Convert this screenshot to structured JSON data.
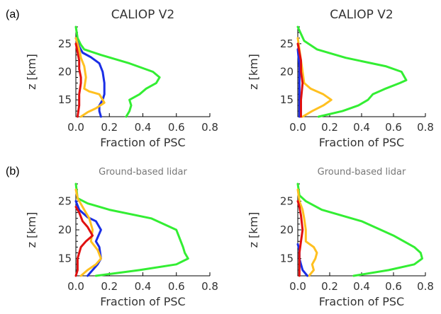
{
  "row_labels": [
    "(a)",
    "(b)"
  ],
  "colors": {
    "green": "#33ee33",
    "blue": "#1a2ee6",
    "orange": "#ffc020",
    "red": "#e01010"
  },
  "chart_data": [
    {
      "type": "line",
      "row_label": "(a)",
      "title": "CALIOP V2",
      "xlabel": "Fraction of PSC",
      "ylabel": "z [km]",
      "xlim": [
        0,
        0.8
      ],
      "ylim": [
        12,
        28
      ],
      "xticks": [
        "0.0",
        "0.2",
        "0.4",
        "0.6",
        "0.8"
      ],
      "yticks": [
        "15",
        "20",
        "25"
      ],
      "series": [
        {
          "color": "green",
          "x": [
            0.3,
            0.32,
            0.33,
            0.32,
            0.38,
            0.42,
            0.48,
            0.5,
            0.46,
            0.32,
            0.15,
            0.05,
            0.03,
            0.01,
            0.0
          ],
          "y": [
            12,
            13,
            14,
            15,
            16,
            17,
            18,
            19,
            20,
            21.5,
            23,
            24,
            24.8,
            26,
            28
          ]
        },
        {
          "color": "blue",
          "x": [
            0.15,
            0.14,
            0.14,
            0.16,
            0.17,
            0.17,
            0.16,
            0.14,
            0.09,
            0.04,
            0.02,
            0.0
          ],
          "y": [
            12,
            13,
            14,
            15,
            16,
            18,
            20,
            21.5,
            22.6,
            23.4,
            24.5,
            26
          ]
        },
        {
          "color": "orange",
          "x": [
            0.03,
            0.07,
            0.12,
            0.17,
            0.14,
            0.08,
            0.05,
            0.06,
            0.05,
            0.03,
            0.02,
            0.01,
            0.0
          ],
          "y": [
            12,
            12.8,
            13.5,
            14.5,
            16,
            16.5,
            17,
            19,
            21,
            22.5,
            24,
            25,
            26
          ]
        },
        {
          "color": "red",
          "x": [
            0.01,
            0.02,
            0.02,
            0.03,
            0.03,
            0.02,
            0.02,
            0.01,
            0.0
          ],
          "y": [
            12,
            14,
            16,
            18,
            19,
            20.5,
            22,
            23.5,
            25
          ]
        }
      ]
    },
    {
      "type": "line",
      "row_label": "(a)",
      "title": "CALIOP V2",
      "xlabel": "Fraction of PSC",
      "ylabel": "z [km]",
      "xlim": [
        0,
        0.8
      ],
      "ylim": [
        12,
        28
      ],
      "xticks": [
        "0.0",
        "0.2",
        "0.4",
        "0.6",
        "0.8"
      ],
      "yticks": [
        "15",
        "20",
        "25"
      ],
      "series": [
        {
          "color": "green",
          "x": [
            0.13,
            0.28,
            0.38,
            0.44,
            0.47,
            0.55,
            0.64,
            0.68,
            0.65,
            0.55,
            0.3,
            0.12,
            0.04,
            0.0
          ],
          "y": [
            12,
            13,
            14,
            15,
            16,
            17,
            18,
            18.5,
            20,
            21,
            22.5,
            24,
            25.5,
            28
          ]
        },
        {
          "color": "orange",
          "x": [
            0.03,
            0.09,
            0.16,
            0.21,
            0.16,
            0.08,
            0.04,
            0.03,
            0.02,
            0.01,
            0.0
          ],
          "y": [
            12,
            13,
            14,
            15,
            16,
            17,
            18,
            20,
            22,
            24,
            26
          ]
        },
        {
          "color": "blue",
          "x": [
            0.01,
            0.01,
            0.01,
            0.01,
            0.0
          ],
          "y": [
            12,
            15,
            18,
            21,
            24
          ]
        },
        {
          "color": "red",
          "x": [
            0.02,
            0.02,
            0.03,
            0.02,
            0.02,
            0.01,
            0.0
          ],
          "y": [
            12,
            15,
            18,
            20,
            22,
            23.5,
            25
          ]
        }
      ]
    },
    {
      "type": "line",
      "row_label": "(b)",
      "title": "Ground-based lidar",
      "xlabel": "Fraction of PSC",
      "ylabel": "z [km]",
      "xlim": [
        0,
        0.8
      ],
      "ylim": [
        12,
        28
      ],
      "xticks": [
        "0.0",
        "0.2",
        "0.4",
        "0.6",
        "0.8"
      ],
      "yticks": [
        "15",
        "20",
        "25"
      ],
      "series": [
        {
          "color": "green",
          "x": [
            0.12,
            0.38,
            0.6,
            0.67,
            0.65,
            0.64,
            0.6,
            0.45,
            0.2,
            0.07,
            0.01,
            0.0
          ],
          "y": [
            12,
            13,
            14,
            15,
            16,
            17,
            20,
            22,
            23.5,
            24.6,
            25.5,
            28
          ]
        },
        {
          "color": "blue",
          "x": [
            0.07,
            0.1,
            0.13,
            0.15,
            0.14,
            0.12,
            0.15,
            0.12,
            0.07,
            0.02,
            0.0
          ],
          "y": [
            12,
            13,
            14,
            15,
            17,
            18,
            20,
            21.5,
            22.2,
            23.5,
            25
          ]
        },
        {
          "color": "orange",
          "x": [
            0.03,
            0.07,
            0.12,
            0.15,
            0.13,
            0.09,
            0.1,
            0.08,
            0.05,
            0.03,
            0.01,
            0.0
          ],
          "y": [
            12,
            13,
            14,
            15,
            16.5,
            18,
            20,
            22,
            23.5,
            24.5,
            25.5,
            27
          ]
        },
        {
          "color": "red",
          "x": [
            0.0,
            0.01,
            0.01,
            0.03,
            0.06,
            0.1,
            0.07,
            0.04,
            0.02,
            0.0
          ],
          "y": [
            12,
            13,
            15,
            17,
            18,
            19,
            20.5,
            21.5,
            23,
            24
          ]
        }
      ]
    },
    {
      "type": "line",
      "row_label": "(b)",
      "title": "Ground-based lidar",
      "xlabel": "Fraction of PSC",
      "ylabel": "z [km]",
      "xlim": [
        0,
        0.8
      ],
      "ylim": [
        12,
        28
      ],
      "xticks": [
        "0.0",
        "0.2",
        "0.4",
        "0.6",
        "0.8"
      ],
      "yticks": [
        "15",
        "20",
        "25"
      ],
      "series": [
        {
          "color": "green",
          "x": [
            0.35,
            0.57,
            0.73,
            0.78,
            0.77,
            0.73,
            0.6,
            0.4,
            0.15,
            0.05,
            0.01,
            0.0
          ],
          "y": [
            12,
            13,
            14,
            15,
            16,
            17,
            19,
            21.5,
            23.5,
            25,
            26,
            28
          ]
        },
        {
          "color": "orange",
          "x": [
            0.07,
            0.1,
            0.09,
            0.11,
            0.12,
            0.1,
            0.05,
            0.05,
            0.04,
            0.03,
            0.01,
            0.0
          ],
          "y": [
            12,
            13,
            14,
            15,
            16,
            17,
            18,
            20,
            22,
            23.5,
            25,
            27
          ]
        },
        {
          "color": "blue",
          "x": [
            0.06,
            0.03,
            0.02,
            0.01,
            0.01,
            0.0
          ],
          "y": [
            12,
            13,
            14,
            15,
            16.5,
            17.5
          ]
        },
        {
          "color": "red",
          "x": [
            0.01,
            0.01,
            0.01,
            0.02,
            0.03,
            0.02,
            0.01,
            0.0
          ],
          "y": [
            12,
            14,
            16,
            18,
            20,
            22.5,
            24,
            25
          ]
        }
      ]
    }
  ]
}
